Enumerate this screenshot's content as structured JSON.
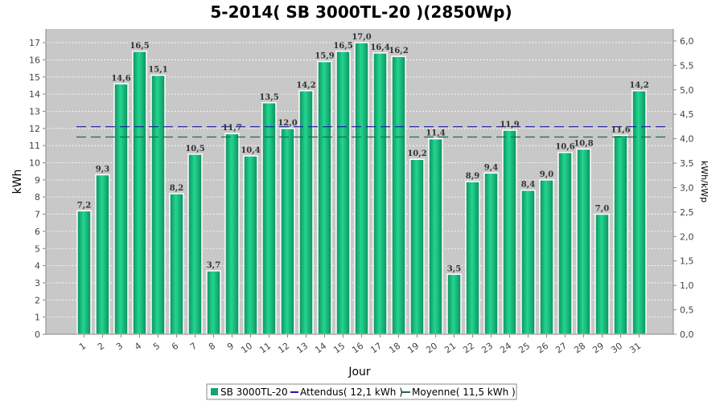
{
  "chart_data": {
    "type": "bar",
    "title": "5-2014( SB 3000TL-20 )(2850Wp)",
    "xlabel": "Jour",
    "ylabel": "kWh",
    "y2label": "kWh/kWp",
    "ylim": [
      0,
      17.8
    ],
    "y_ticks": [
      "0",
      "1",
      "2",
      "3",
      "4",
      "5",
      "6",
      "7",
      "8",
      "9",
      "10",
      "11",
      "12",
      "13",
      "14",
      "15",
      "16",
      "17"
    ],
    "y2_ticks": [
      "0,0",
      "0,5",
      "1,0",
      "1,5",
      "2,0",
      "2,5",
      "3,0",
      "3,5",
      "4,0",
      "4,5",
      "5,0",
      "5,5",
      "6,0"
    ],
    "categories": [
      "1",
      "2",
      "3",
      "4",
      "5",
      "6",
      "7",
      "8",
      "9",
      "10",
      "11",
      "12",
      "13",
      "14",
      "15",
      "16",
      "17",
      "18",
      "19",
      "20",
      "21",
      "22",
      "23",
      "24",
      "25",
      "26",
      "27",
      "28",
      "29",
      "30",
      "31"
    ],
    "series": [
      {
        "name": "SB 3000TL-20",
        "values": [
          7.2,
          9.3,
          14.6,
          16.5,
          15.1,
          8.2,
          10.5,
          3.7,
          11.7,
          10.4,
          13.5,
          12.0,
          14.2,
          15.9,
          16.5,
          17.0,
          16.4,
          16.2,
          10.2,
          11.4,
          3.5,
          8.9,
          9.4,
          11.9,
          8.4,
          9.0,
          10.6,
          10.8,
          7.0,
          11.6,
          14.2
        ],
        "labels": [
          "7,2",
          "9,3",
          "14,6",
          "16,5",
          "15,1",
          "8,2",
          "10,5",
          "3,7",
          "11,7",
          "10,4",
          "13,5",
          "12,0",
          "14,2",
          "15,9",
          "16,5",
          "17,0",
          "16,4",
          "16,2",
          "10,2",
          "11,4",
          "3,5",
          "8,9",
          "9,4",
          "11,9",
          "8,4",
          "9,0",
          "10,6",
          "10,8",
          "7,0",
          "11,6",
          "14,2"
        ]
      }
    ],
    "reference_lines": [
      {
        "name": "Attendus( 12,1 kWh )",
        "value": 12.1,
        "color": "#1a1aa6"
      },
      {
        "name": "Moyenne( 11,5 kWh )",
        "value": 11.5,
        "color": "#1e6b52"
      }
    ],
    "legend": {
      "placement": "bottom",
      "items": [
        "SB 3000TL-20",
        "Attendus( 12,1 kWh )",
        "Moyenne( 11,5 kWh )"
      ]
    },
    "grid": true,
    "colors": {
      "bar": "#11a66f",
      "bar_light": "#2fe0a0",
      "plot_bg": "#c8c8c8",
      "attendus": "#1a1aa6",
      "moyenne": "#1e6b52"
    }
  }
}
